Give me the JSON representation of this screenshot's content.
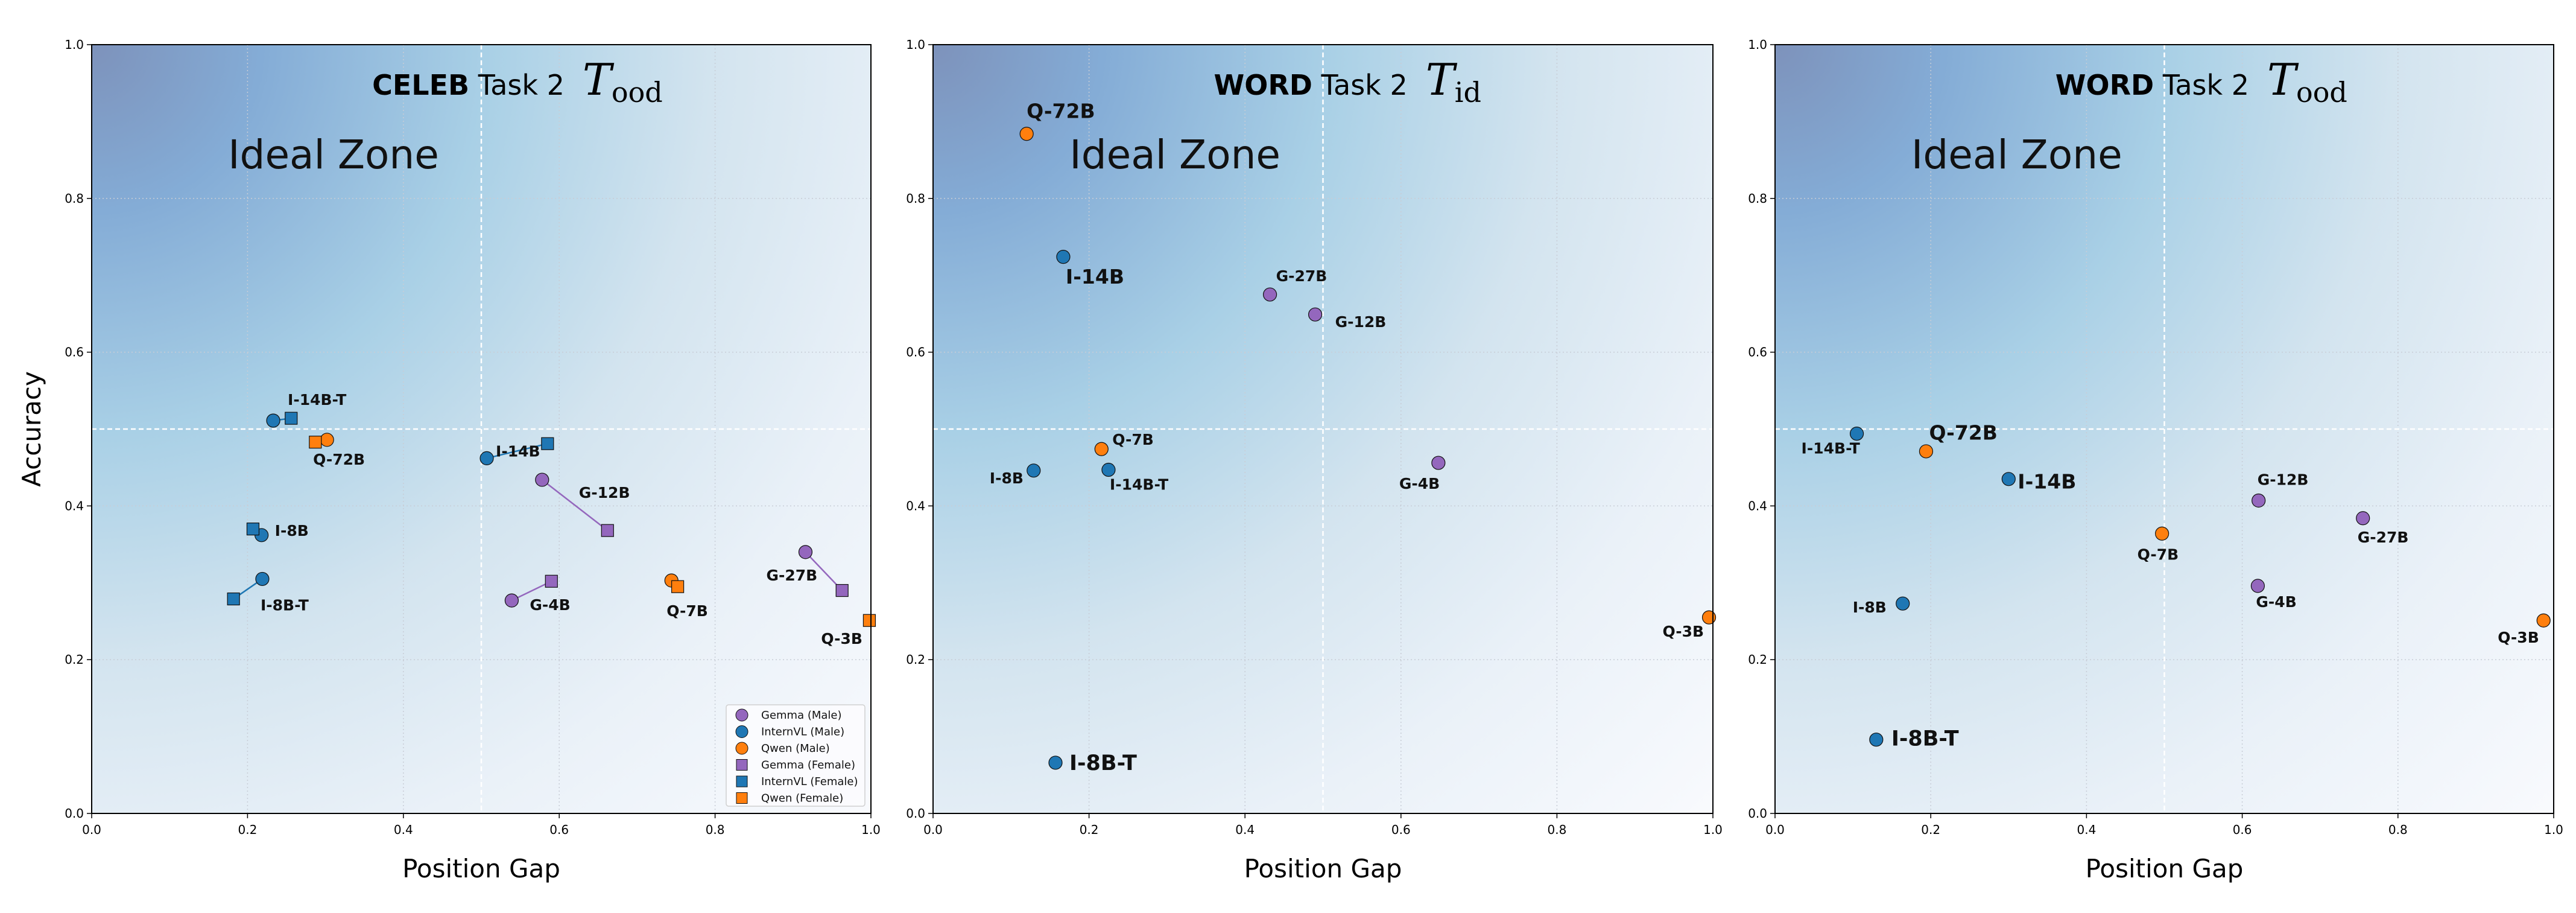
{
  "chart_data": [
    {
      "type": "scatter",
      "title": {
        "bold": "CELEB",
        "text": "Task 2",
        "symbol": "T",
        "subscript": "ood"
      },
      "xlabel": "Position Gap",
      "ylabel": "Accuracy",
      "xlim": [
        0,
        1
      ],
      "ylim": [
        0,
        1
      ],
      "xticks": [
        "0.0",
        "0.2",
        "0.4",
        "0.6",
        "0.8",
        "1.0"
      ],
      "yticks": [
        "0.0",
        "0.2",
        "0.4",
        "0.6",
        "0.8",
        "1.0"
      ],
      "grid": true,
      "reference_lines": {
        "x": 0.5,
        "y": 0.5
      },
      "annotation": "Ideal Zone",
      "legend": {
        "placement": "lower-right",
        "entries": [
          {
            "label": "Gemma (Male)",
            "family": "Gemma",
            "marker": "circle"
          },
          {
            "label": "InternVL (Male)",
            "family": "InternVL",
            "marker": "circle"
          },
          {
            "label": "Qwen (Male)",
            "family": "Qwen",
            "marker": "circle"
          },
          {
            "label": "Gemma (Female)",
            "family": "Gemma",
            "marker": "square"
          },
          {
            "label": "InternVL (Female)",
            "family": "InternVL",
            "marker": "square"
          },
          {
            "label": "Qwen (Female)",
            "family": "Qwen",
            "marker": "square"
          }
        ]
      },
      "points": [
        {
          "label": "I-14B-T",
          "family": "InternVL",
          "male": [
            0.233,
            0.511
          ],
          "female": [
            0.256,
            0.514
          ]
        },
        {
          "label": "Q-72B",
          "family": "Qwen",
          "male": [
            0.302,
            0.486
          ],
          "female": [
            0.287,
            0.483
          ]
        },
        {
          "label": "I-14B",
          "family": "InternVL",
          "male": [
            0.507,
            0.462
          ],
          "female": [
            0.585,
            0.481
          ]
        },
        {
          "label": "G-12B",
          "family": "Gemma",
          "male": [
            0.578,
            0.434
          ],
          "female": [
            0.662,
            0.368
          ]
        },
        {
          "label": "I-8B",
          "family": "InternVL",
          "male": [
            0.218,
            0.362
          ],
          "female": [
            0.207,
            0.37
          ]
        },
        {
          "label": "I-8B-T",
          "family": "InternVL",
          "male": [
            0.219,
            0.305
          ],
          "female": [
            0.182,
            0.279
          ]
        },
        {
          "label": "G-4B",
          "family": "Gemma",
          "male": [
            0.539,
            0.277
          ],
          "female": [
            0.59,
            0.302
          ]
        },
        {
          "label": "Q-7B",
          "family": "Qwen",
          "male": [
            0.744,
            0.303
          ],
          "female": [
            0.752,
            0.295
          ]
        },
        {
          "label": "G-27B",
          "family": "Gemma",
          "male": [
            0.916,
            0.34
          ],
          "female": [
            0.963,
            0.29
          ]
        },
        {
          "label": "Q-3B",
          "family": "Qwen",
          "female": [
            0.998,
            0.251
          ]
        }
      ]
    },
    {
      "type": "scatter",
      "title": {
        "bold": "WORD",
        "text": "Task 2",
        "symbol": "T",
        "subscript": "id"
      },
      "xlabel": "Position Gap",
      "xlim": [
        0,
        1
      ],
      "ylim": [
        0,
        1
      ],
      "xticks": [
        "0.0",
        "0.2",
        "0.4",
        "0.6",
        "0.8",
        "1.0"
      ],
      "yticks": [
        "0.0",
        "0.2",
        "0.4",
        "0.6",
        "0.8",
        "1.0"
      ],
      "grid": true,
      "reference_lines": {
        "x": 0.5,
        "y": 0.5
      },
      "annotation": "Ideal Zone",
      "points": [
        {
          "label": "Q-72B",
          "family": "Qwen",
          "male": [
            0.12,
            0.884
          ]
        },
        {
          "label": "I-14B",
          "family": "InternVL",
          "male": [
            0.167,
            0.724
          ]
        },
        {
          "label": "G-27B",
          "family": "Gemma",
          "male": [
            0.432,
            0.675
          ]
        },
        {
          "label": "G-12B",
          "family": "Gemma",
          "male": [
            0.49,
            0.649
          ]
        },
        {
          "label": "Q-7B",
          "family": "Qwen",
          "male": [
            0.216,
            0.474
          ]
        },
        {
          "label": "I-8B",
          "family": "InternVL",
          "male": [
            0.129,
            0.446
          ]
        },
        {
          "label": "I-14B-T",
          "family": "InternVL",
          "male": [
            0.225,
            0.447
          ]
        },
        {
          "label": "G-4B",
          "family": "Gemma",
          "male": [
            0.648,
            0.456
          ]
        },
        {
          "label": "Q-3B",
          "family": "Qwen",
          "male": [
            0.995,
            0.255
          ]
        },
        {
          "label": "I-8B-T",
          "family": "InternVL",
          "male": [
            0.157,
            0.066
          ]
        }
      ]
    },
    {
      "type": "scatter",
      "title": {
        "bold": "WORD",
        "text": "Task 2",
        "symbol": "T",
        "subscript": "ood"
      },
      "xlabel": "Position Gap",
      "xlim": [
        0,
        1
      ],
      "ylim": [
        0,
        1
      ],
      "xticks": [
        "0.0",
        "0.2",
        "0.4",
        "0.6",
        "0.8",
        "1.0"
      ],
      "yticks": [
        "0.0",
        "0.2",
        "0.4",
        "0.6",
        "0.8",
        "1.0"
      ],
      "grid": true,
      "reference_lines": {
        "x": 0.5,
        "y": 0.5
      },
      "annotation": "Ideal Zone",
      "points": [
        {
          "label": "I-14B-T",
          "family": "InternVL",
          "male": [
            0.105,
            0.494
          ]
        },
        {
          "label": "Q-72B",
          "family": "Qwen",
          "male": [
            0.194,
            0.471
          ]
        },
        {
          "label": "I-14B",
          "family": "InternVL",
          "male": [
            0.3,
            0.435
          ]
        },
        {
          "label": "G-12B",
          "family": "Gemma",
          "male": [
            0.621,
            0.407
          ]
        },
        {
          "label": "G-27B",
          "family": "Gemma",
          "male": [
            0.755,
            0.384
          ]
        },
        {
          "label": "Q-7B",
          "family": "Qwen",
          "male": [
            0.497,
            0.364
          ]
        },
        {
          "label": "G-4B",
          "family": "Gemma",
          "male": [
            0.62,
            0.296
          ]
        },
        {
          "label": "I-8B",
          "family": "InternVL",
          "male": [
            0.164,
            0.273
          ]
        },
        {
          "label": "Q-3B",
          "family": "Qwen",
          "male": [
            0.987,
            0.251
          ]
        },
        {
          "label": "I-8B-T",
          "family": "InternVL",
          "male": [
            0.13,
            0.096
          ]
        }
      ]
    }
  ],
  "colors": {
    "Gemma": "#9467bd",
    "InternVL": "#1f77b4",
    "Qwen": "#ff7f0e"
  }
}
